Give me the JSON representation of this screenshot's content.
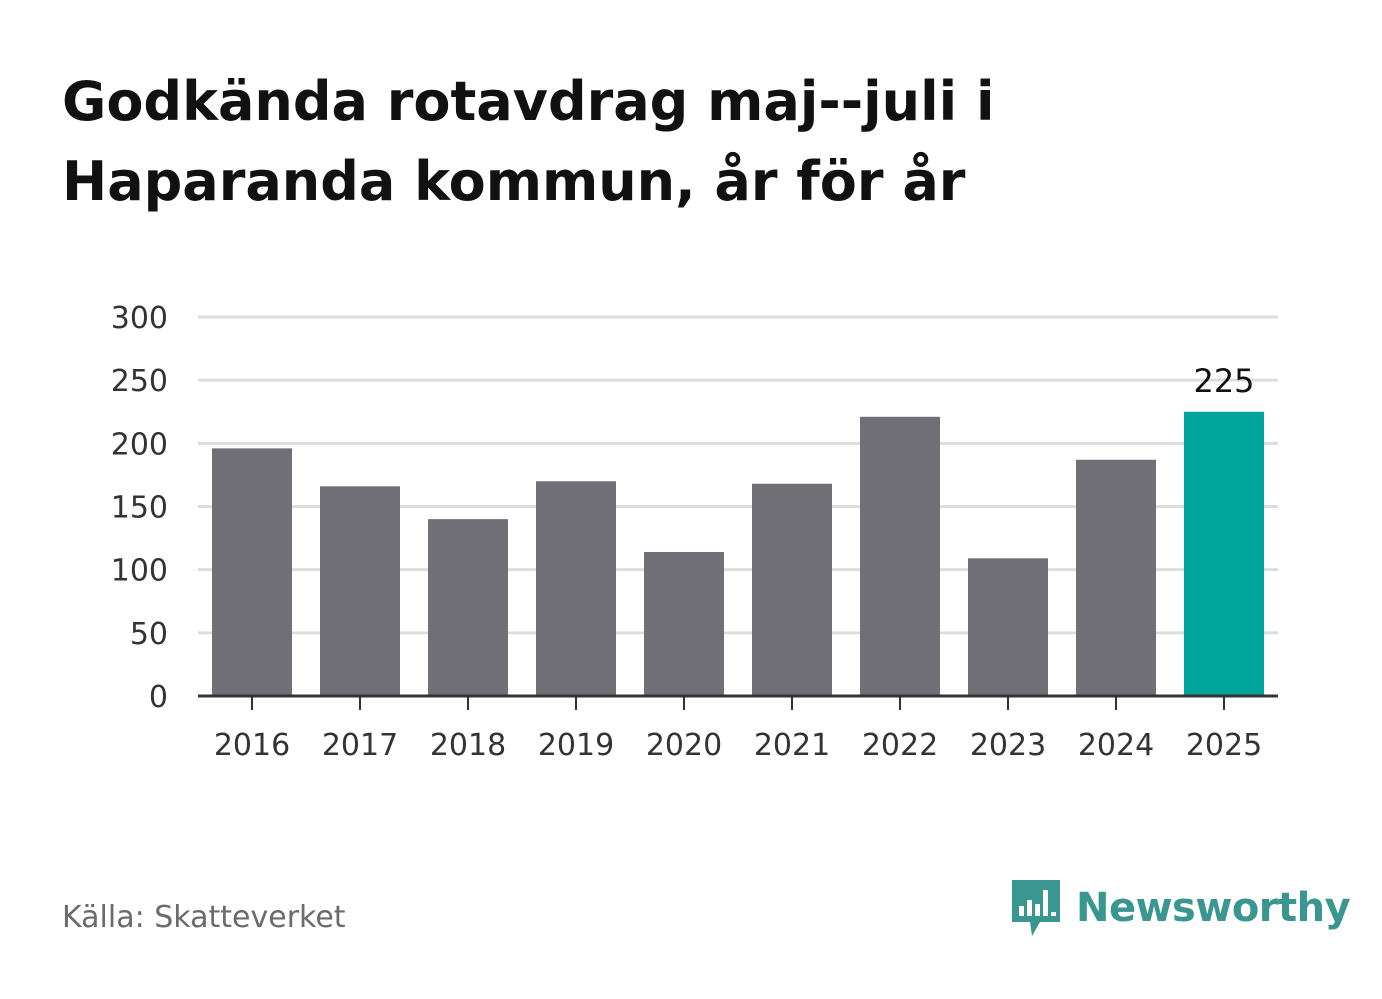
{
  "title": "Godkända rotavdrag maj--juli i Haparanda kommun, år för år",
  "source": "Källa: Skatteverket",
  "brand": {
    "name": "Newsworthy",
    "icon": "bar-chart-bubble-icon"
  },
  "colors": {
    "bar": "#706f75",
    "highlight": "#00a59a",
    "grid": "#dddddd",
    "axis": "#333333",
    "brand": "#3a9690"
  },
  "chart_data": {
    "type": "bar",
    "categories": [
      "2016",
      "2017",
      "2018",
      "2019",
      "2020",
      "2021",
      "2022",
      "2023",
      "2024",
      "2025"
    ],
    "values": [
      196,
      166,
      140,
      170,
      114,
      168,
      221,
      109,
      187,
      225
    ],
    "ylim": [
      0,
      300
    ],
    "yticks": [
      "0",
      "50",
      "100",
      "150",
      "200",
      "250",
      "300"
    ],
    "grid": true,
    "highlight_index": 9,
    "data_labels": [
      {
        "index": 9,
        "text": "225"
      }
    ]
  }
}
